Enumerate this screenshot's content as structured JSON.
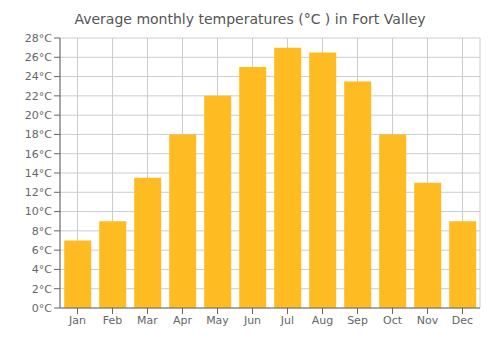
{
  "chart_data": {
    "type": "bar",
    "title": "Average monthly temperatures (°C ) in Fort Valley",
    "categories": [
      "Jan",
      "Feb",
      "Mar",
      "Apr",
      "May",
      "Jun",
      "Jul",
      "Aug",
      "Sep",
      "Oct",
      "Nov",
      "Dec"
    ],
    "values": [
      7.0,
      9.0,
      13.5,
      18.0,
      22.0,
      25.0,
      27.0,
      26.5,
      23.5,
      18.0,
      13.0,
      9.0
    ],
    "color": "#FFBB22",
    "ylim": [
      0,
      28
    ],
    "yticks": [
      {
        "value": 0,
        "label": "0°C"
      },
      {
        "value": 2,
        "label": "2°C"
      },
      {
        "value": 4,
        "label": "4°C"
      },
      {
        "value": 6,
        "label": "6°C"
      },
      {
        "value": 8,
        "label": "8°C"
      },
      {
        "value": 10,
        "label": "10°C"
      },
      {
        "value": 12,
        "label": "12°C"
      },
      {
        "value": 14,
        "label": "14°C"
      },
      {
        "value": 16,
        "label": "16°C"
      },
      {
        "value": 18,
        "label": "18°C"
      },
      {
        "value": 20,
        "label": "20°C"
      },
      {
        "value": 22,
        "label": "22°C"
      },
      {
        "value": 24,
        "label": "24°C"
      },
      {
        "value": 26,
        "label": "26°C"
      },
      {
        "value": 28,
        "label": "28°C"
      }
    ],
    "grid": true
  }
}
